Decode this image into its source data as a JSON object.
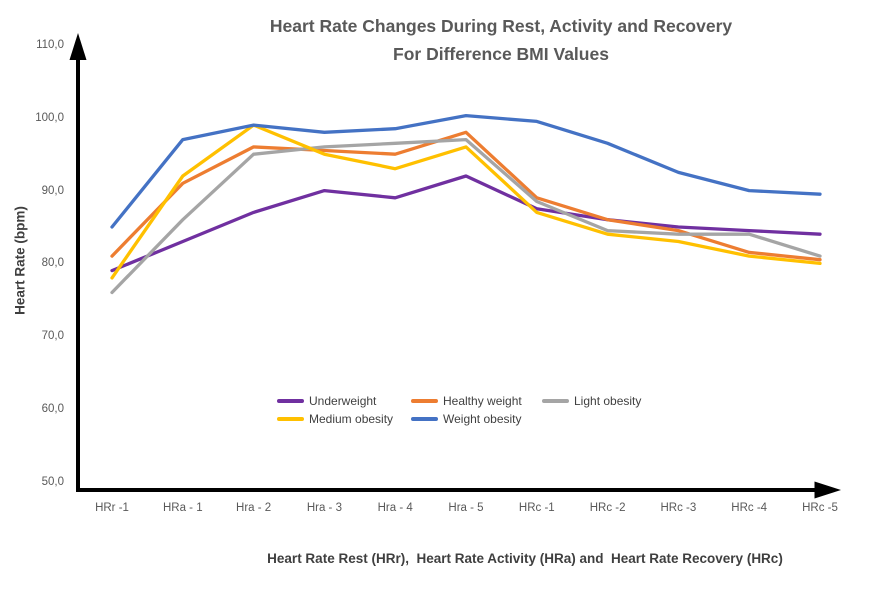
{
  "title": {
    "line1": "Heart Rate Changes During Rest, Activity and Recovery",
    "line2": "For Difference BMI Values"
  },
  "y_axis": {
    "label": "Heart Rate (bpm)",
    "ticks": [
      "110,0",
      "100,0",
      "90,0",
      "80,0",
      "70,0",
      "60,0",
      "50,0"
    ]
  },
  "x_axis": {
    "title": "Heart Rate Rest (HRr),  Heart Rate Activity (HRa) and  Heart Rate Recovery (HRc)"
  },
  "chart_data": {
    "type": "line",
    "title": "Heart Rate Changes During Rest, Activity and Recovery For Difference BMI Values",
    "xlabel": "Heart Rate Rest (HRr), Heart Rate Activity (HRa) and Heart Rate Recovery (HRc)",
    "ylabel": "Heart Rate (bpm)",
    "ylim": [
      50,
      110
    ],
    "y_tick_step": 10,
    "grid": false,
    "legend_position": "inside-bottom-center",
    "categories": [
      "HRr -1",
      "HRa - 1",
      "Hra - 2",
      "Hra - 3",
      "Hra - 4",
      "Hra - 5",
      "HRc -1",
      "HRc -2",
      "HRc -3",
      "HRc -4",
      "HRc -5"
    ],
    "series": [
      {
        "name": "Underweight",
        "color": "#7030A0",
        "values": [
          79,
          83,
          87,
          90,
          89,
          92,
          87.5,
          86,
          85,
          84.5,
          84
        ]
      },
      {
        "name": "Healthy weight",
        "color": "#ED7D31",
        "values": [
          81,
          91,
          96,
          95.5,
          95,
          98,
          89,
          86,
          84.5,
          81.5,
          80.5
        ]
      },
      {
        "name": "Light obesity",
        "color": "#A5A5A5",
        "values": [
          76,
          86,
          95,
          96,
          96.5,
          97,
          88.5,
          84.5,
          84,
          84,
          81
        ]
      },
      {
        "name": "Medium obesity",
        "color": "#FFC000",
        "values": [
          78,
          92,
          99,
          95,
          93,
          96,
          87,
          84,
          83,
          81,
          80
        ]
      },
      {
        "name": "Weight obesity",
        "color": "#4472C4",
        "values": [
          85,
          97,
          99,
          98,
          98.5,
          100.3,
          99.5,
          96.5,
          92.5,
          90,
          89.5
        ]
      }
    ],
    "axis_color": "#000000"
  }
}
